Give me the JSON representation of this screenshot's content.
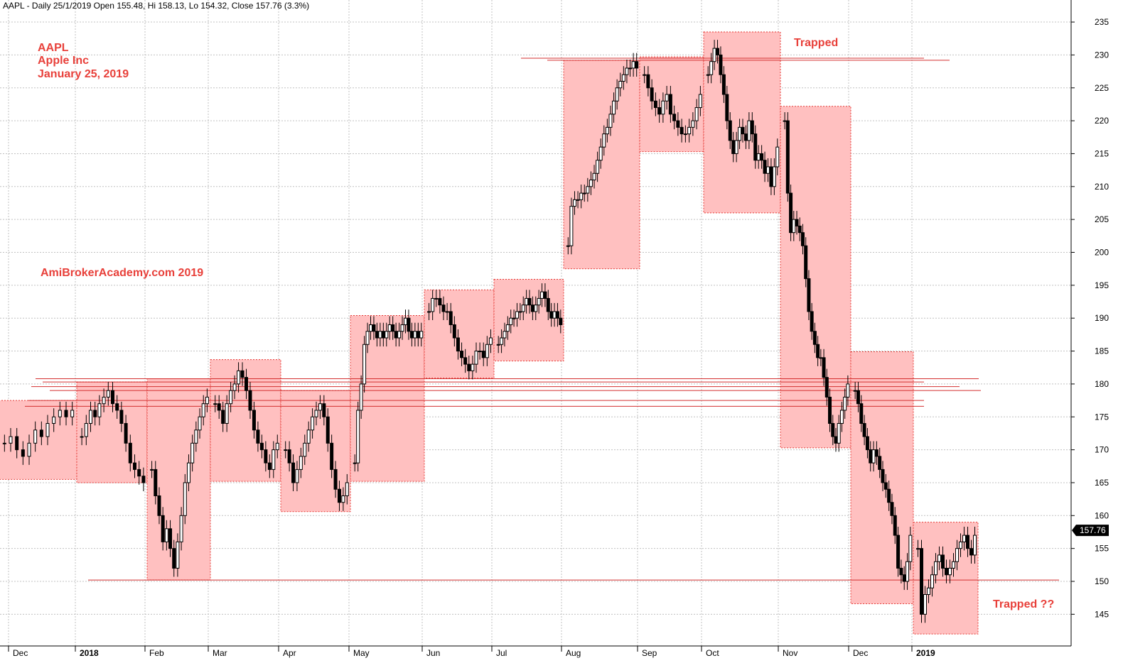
{
  "header": {
    "text": "AAPL - Daily 25/1/2019 Open 155.48, Hi 158.13, Lo 154.32, Close 157.76 (3.3%)"
  },
  "annotations": {
    "ticker": "AAPL",
    "company": "Apple Inc",
    "date": "January 25, 2019",
    "watermark": "AmiBrokerAcademy.com  2019",
    "trapped": "Trapped",
    "trapped_q": "Trapped ??",
    "last_price": "157.76"
  },
  "colors": {
    "box_fill": "#ffc0c0",
    "box_border": "#e53935",
    "annotation": "#e8403a",
    "line": "#d32f2f",
    "grid": "#c0c0c0"
  },
  "chart_data": {
    "type": "candlestick",
    "ylim": [
      140,
      236
    ],
    "y_ticks": [
      145,
      150,
      155,
      160,
      165,
      170,
      175,
      180,
      185,
      190,
      195,
      200,
      205,
      210,
      215,
      220,
      225,
      230,
      235
    ],
    "x_ticks": [
      {
        "label": "Dec",
        "bold": false
      },
      {
        "label": "2018",
        "bold": true
      },
      {
        "label": "Feb",
        "bold": false
      },
      {
        "label": "Mar",
        "bold": false
      },
      {
        "label": "Apr",
        "bold": false
      },
      {
        "label": "May",
        "bold": false
      },
      {
        "label": "Jun",
        "bold": false
      },
      {
        "label": "Jul",
        "bold": false
      },
      {
        "label": "Aug",
        "bold": false
      },
      {
        "label": "Sep",
        "bold": false
      },
      {
        "label": "Oct",
        "bold": false
      },
      {
        "label": "Nov",
        "bold": false
      },
      {
        "label": "Dec",
        "bold": false
      },
      {
        "label": "2019",
        "bold": true
      }
    ],
    "monthly_ranges": [
      {
        "month": "Dec 2017",
        "low": 165.5,
        "high": 177.5
      },
      {
        "month": "Jan 2018",
        "low": 165.0,
        "high": 180.3
      },
      {
        "month": "Feb 2018",
        "low": 150.2,
        "high": 180.8
      },
      {
        "month": "Mar 2018",
        "low": 165.2,
        "high": 183.7
      },
      {
        "month": "Apr 2018",
        "low": 160.6,
        "high": 179.0
      },
      {
        "month": "May 2018",
        "low": 165.2,
        "high": 190.4
      },
      {
        "month": "Jun 2018",
        "low": 180.9,
        "high": 194.3
      },
      {
        "month": "Jul 2018",
        "low": 183.5,
        "high": 195.9
      },
      {
        "month": "Aug 2018",
        "low": 197.5,
        "high": 229.2
      },
      {
        "month": "Sep 2018",
        "low": 215.3,
        "high": 229.7
      },
      {
        "month": "Oct 2018",
        "low": 206.0,
        "high": 233.5
      },
      {
        "month": "Nov 2018",
        "low": 170.3,
        "high": 222.2
      },
      {
        "month": "Dec 2018",
        "low": 146.6,
        "high": 184.9
      },
      {
        "month": "Jan 2019",
        "low": 142.0,
        "high": 159.0
      }
    ],
    "horizontal_levels": [
      229.5,
      229.2,
      180.8,
      180.3,
      179.6,
      179.0,
      177.5,
      176.6,
      150.2
    ],
    "last_close": 157.76
  }
}
